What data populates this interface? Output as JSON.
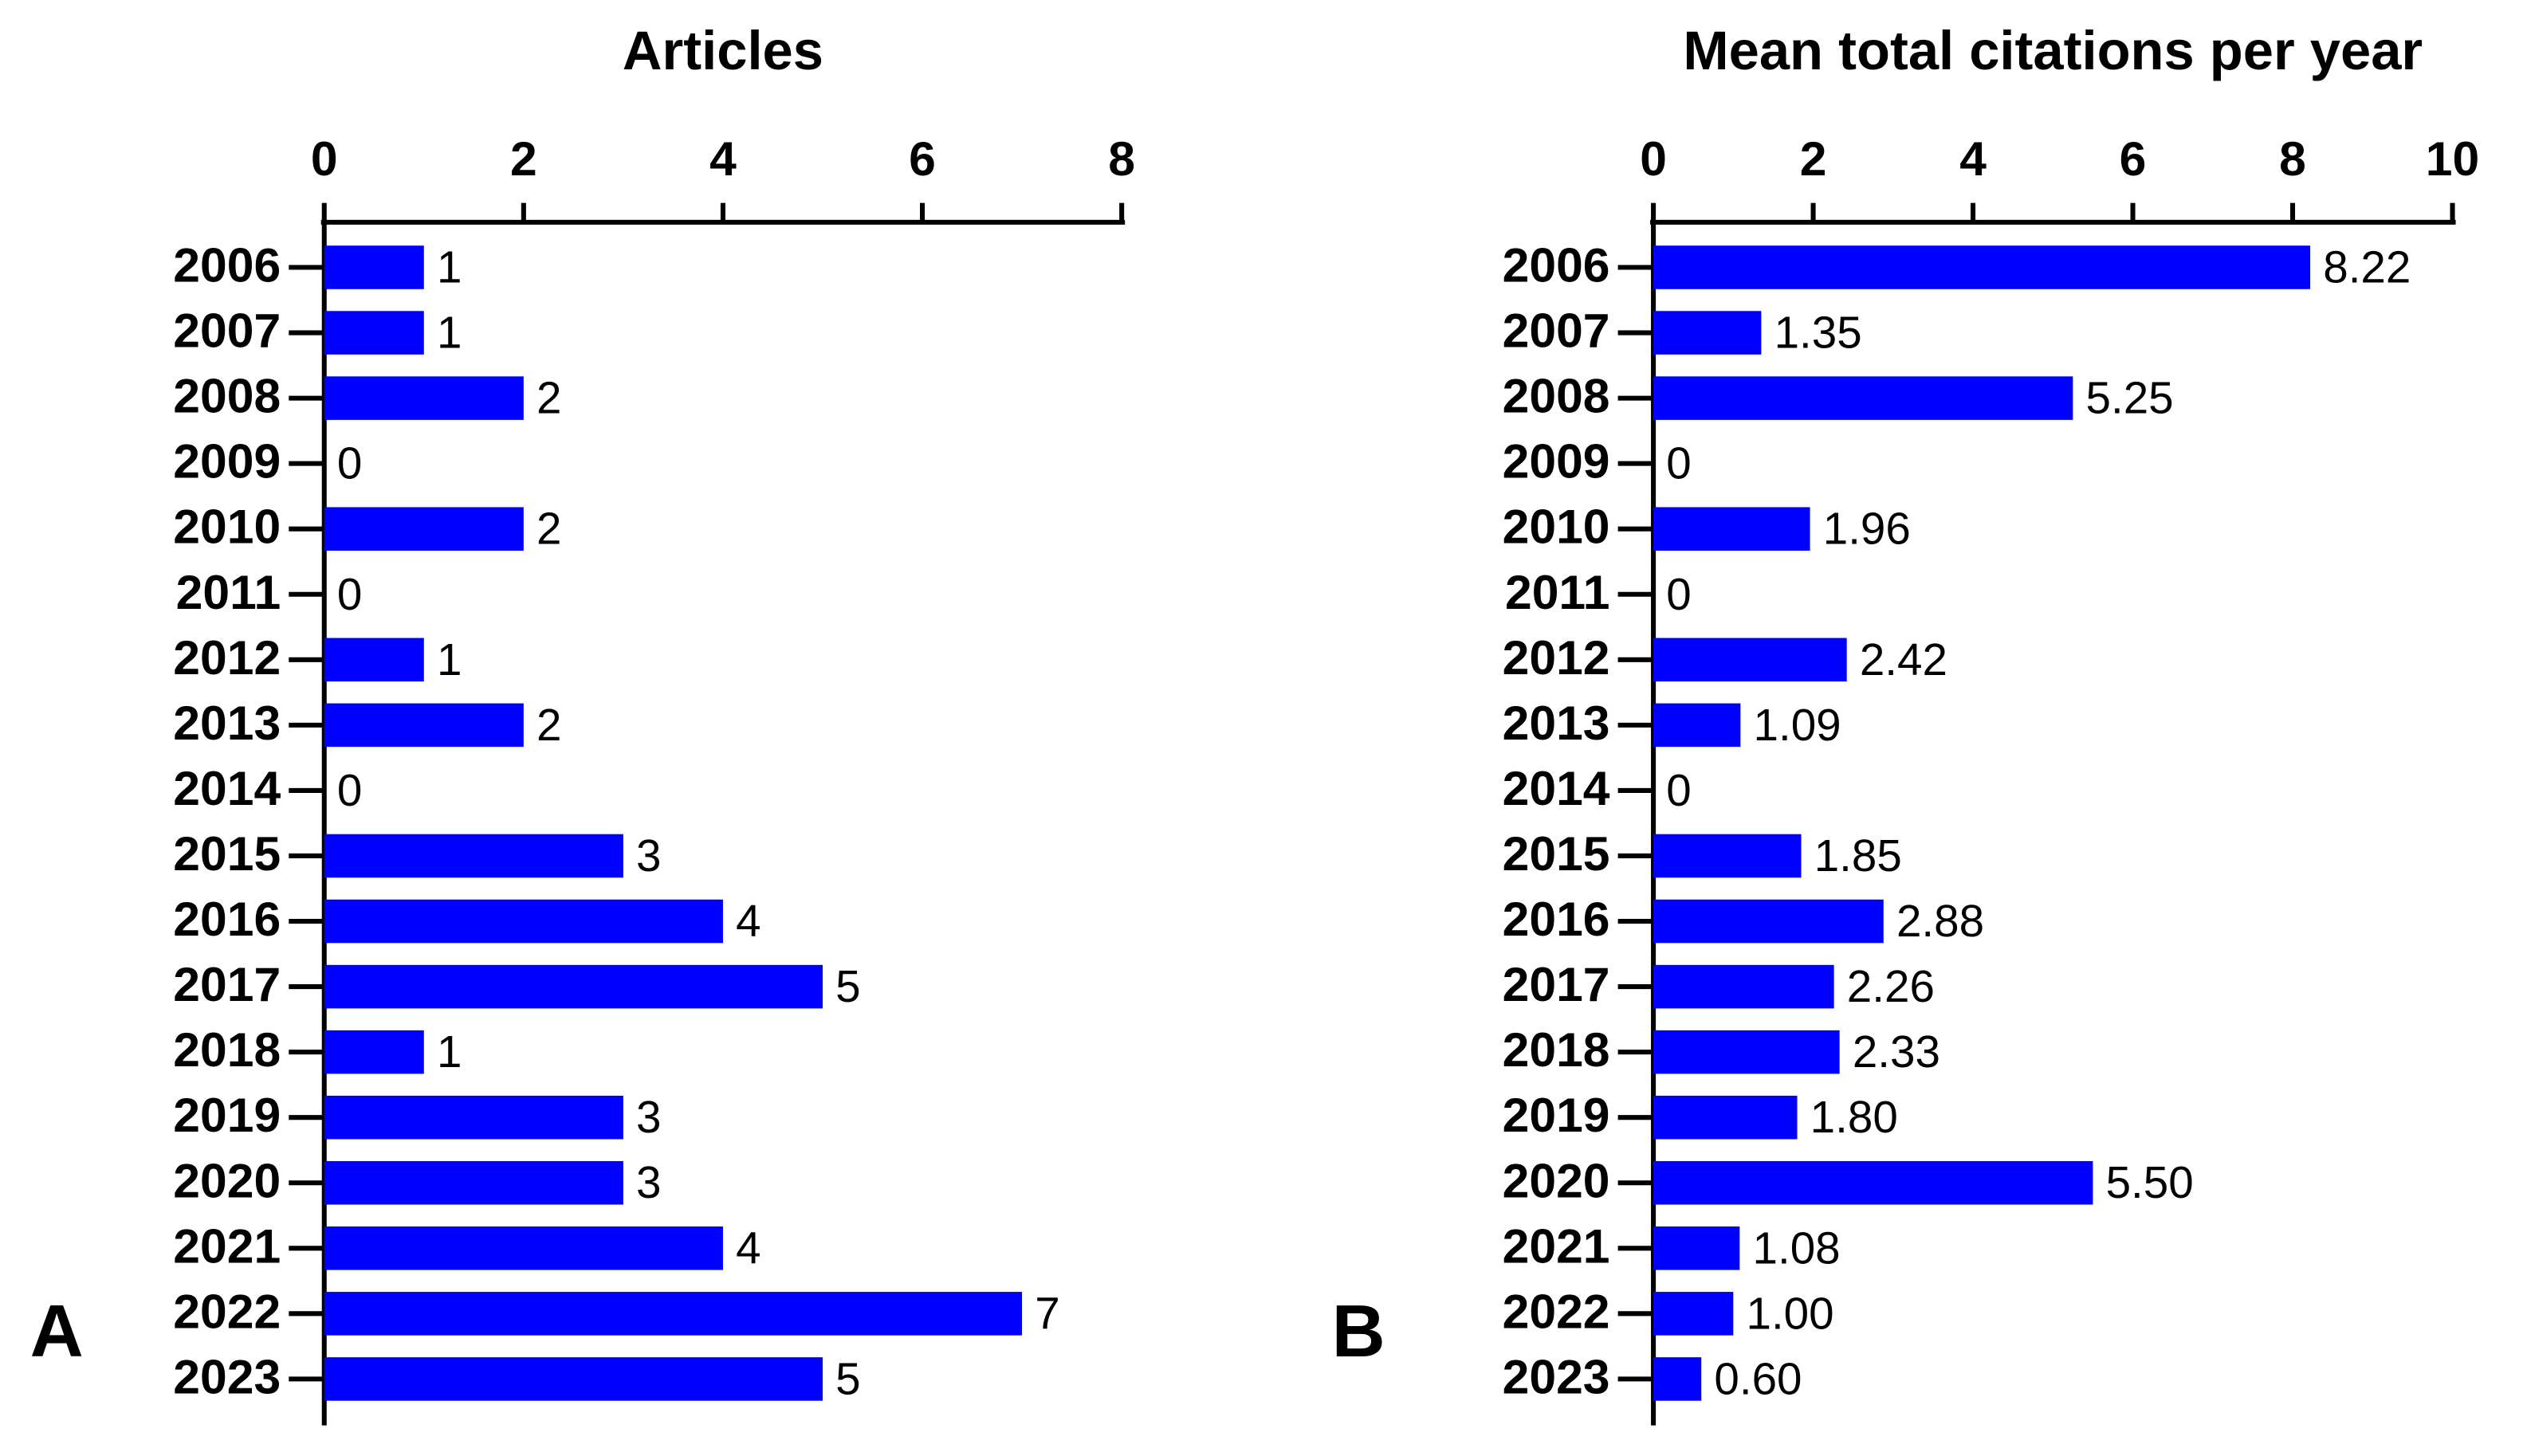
{
  "chart_data": [
    {
      "type": "bar",
      "orientation": "horizontal",
      "title": "Articles",
      "panel_label": "A",
      "categories": [
        "2006",
        "2007",
        "2008",
        "2009",
        "2010",
        "2011",
        "2012",
        "2013",
        "2014",
        "2015",
        "2016",
        "2017",
        "2018",
        "2019",
        "2020",
        "2021",
        "2022",
        "2023"
      ],
      "values": [
        1,
        1,
        2,
        0,
        2,
        0,
        1,
        2,
        0,
        3,
        4,
        5,
        1,
        3,
        3,
        4,
        7,
        5
      ],
      "color": "#0000ff",
      "xlim": [
        0,
        8
      ],
      "xticks": [
        0,
        2,
        4,
        6,
        8
      ]
    },
    {
      "type": "bar",
      "orientation": "horizontal",
      "title": "Mean total citations per year",
      "panel_label": "B",
      "categories": [
        "2006",
        "2007",
        "2008",
        "2009",
        "2010",
        "2011",
        "2012",
        "2013",
        "2014",
        "2015",
        "2016",
        "2017",
        "2018",
        "2019",
        "2020",
        "2021",
        "2022",
        "2023"
      ],
      "values": [
        8.22,
        1.35,
        5.25,
        0,
        1.96,
        0,
        2.42,
        1.09,
        0,
        1.85,
        2.88,
        2.26,
        2.33,
        1.8,
        5.5,
        1.08,
        1.0,
        0.6
      ],
      "value_labels": [
        "8.22",
        "1.35",
        "5.25",
        "0",
        "1.96",
        "0",
        "2.42",
        "1.09",
        "0",
        "1.85",
        "2.88",
        "2.26",
        "2.33",
        "1.80",
        "5.50",
        "1.08",
        "1.00",
        "0.60"
      ],
      "color": "#0000ff",
      "xlim": [
        0,
        10
      ],
      "xticks": [
        0,
        2,
        4,
        6,
        8,
        10
      ]
    }
  ]
}
